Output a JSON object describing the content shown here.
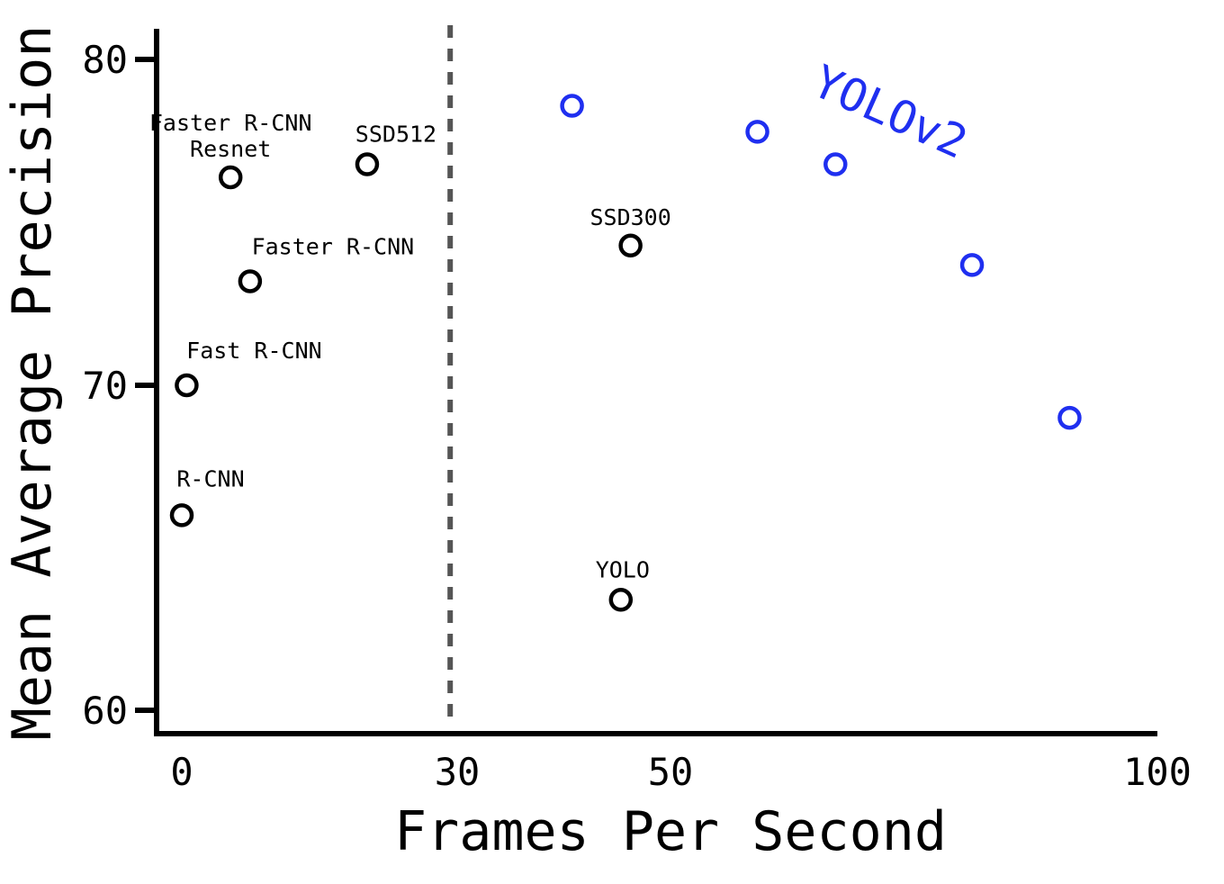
{
  "chart_data": {
    "type": "scatter",
    "xlabel": "Frames Per Second",
    "ylabel": "Mean Average Precision",
    "x_ticks": [
      {
        "value": 0,
        "label": "0"
      },
      {
        "value": 30,
        "label": "30"
      },
      {
        "value": 50,
        "label": "50"
      },
      {
        "value": 100,
        "label": "100"
      }
    ],
    "y_ticks": [
      {
        "value": 60,
        "label": "60"
      },
      {
        "value": 70,
        "label": "70"
      },
      {
        "value": 80,
        "label": "80"
      }
    ],
    "xlim": [
      0,
      100
    ],
    "ylim": [
      59.2,
      81
    ],
    "reference_line_x": 30,
    "colors": {
      "axis": "#000000",
      "yolov2": "#1f2ff0",
      "reference": "#555555"
    },
    "series": [
      {
        "name": "YOLOv2",
        "color": "#1f2ff0",
        "points": [
          {
            "x": 40,
            "y": 78.6
          },
          {
            "x": 59,
            "y": 77.8
          },
          {
            "x": 67,
            "y": 76.8
          },
          {
            "x": 81,
            "y": 73.7
          },
          {
            "x": 91,
            "y": 69.0
          }
        ]
      },
      {
        "name": "",
        "color": "#000000",
        "points": [
          {
            "label": "R-CNN",
            "x": 0,
            "y": 66.0
          },
          {
            "label": "Fast R-CNN",
            "x": 0.5,
            "y": 70.0
          },
          {
            "label": "Faster R-CNN",
            "x": 7,
            "y": 73.2
          },
          {
            "label": "Faster R-CNN\nResnet",
            "x": 5,
            "y": 76.4
          },
          {
            "label": "SSD512",
            "x": 19,
            "y": 76.8
          },
          {
            "label": "SSD300",
            "x": 46,
            "y": 74.3
          },
          {
            "label": "YOLO",
            "x": 45,
            "y": 63.4
          }
        ]
      }
    ]
  }
}
